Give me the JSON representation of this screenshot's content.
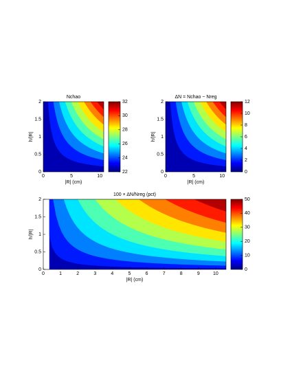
{
  "chart_data": [
    {
      "type": "contour",
      "title": "Nchao",
      "xlabel": "|R| (cm)",
      "ylabel": "h/|R|",
      "xlim": [
        0,
        10.7
      ],
      "ylim": [
        0,
        2
      ],
      "xticks": [
        0,
        5,
        10
      ],
      "yticks": [
        0,
        0.5,
        1,
        1.5,
        2
      ],
      "clim": [
        22,
        32
      ],
      "cticks": [
        22,
        24,
        26,
        28,
        30,
        32
      ]
    },
    {
      "type": "contour",
      "title": "ΔN = Nchao − Nreg",
      "xlabel": "|R| (cm)",
      "ylabel": "h/|R|",
      "xlim": [
        0,
        10.7
      ],
      "ylim": [
        0,
        2
      ],
      "xticks": [
        0,
        5,
        10
      ],
      "yticks": [
        0,
        0.5,
        1,
        1.5,
        2
      ],
      "clim": [
        0,
        12
      ],
      "cticks": [
        0,
        2,
        4,
        6,
        8,
        10,
        12
      ]
    },
    {
      "type": "contour",
      "title": "100 × ΔN/Nreg (pct)",
      "xlabel": "|R| (cm)",
      "ylabel": "h/|R|",
      "xlim": [
        0,
        10.6
      ],
      "ylim": [
        0,
        2
      ],
      "xticks": [
        0,
        1,
        2,
        3,
        4,
        5,
        6,
        7,
        8,
        9,
        10
      ],
      "yticks": [
        0,
        0.5,
        1,
        1.5,
        2
      ],
      "clim": [
        0,
        50
      ],
      "cticks": [
        0,
        10,
        20,
        30,
        40,
        50
      ]
    }
  ]
}
